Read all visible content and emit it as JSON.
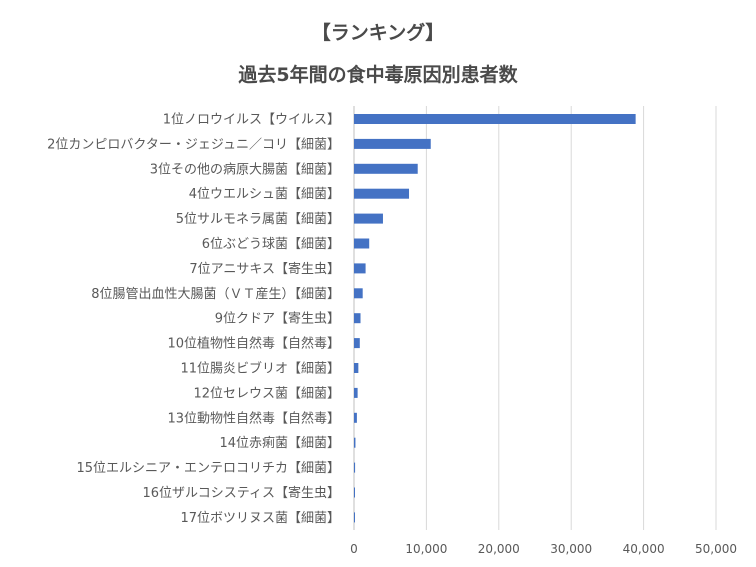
{
  "chart_data": {
    "type": "bar",
    "orientation": "horizontal",
    "title_line1": "【ランキング】",
    "title_line2": "過去5年間の食中毒原因別患者数",
    "categories": [
      "1位ノロウイルス【ウイルス】",
      "2位カンピロバクター・ジェジュニ／コリ【細菌】",
      "3位その他の病原大腸菌【細菌】",
      "4位ウエルシュ菌【細菌】",
      "5位サルモネラ属菌【細菌】",
      "6位ぶどう球菌【細菌】",
      "7位アニサキス【寄生虫】",
      "8位腸管出血性大腸菌（ＶＴ産生）【細菌】",
      "9位クドア【寄生虫】",
      "10位植物性自然毒【自然毒】",
      "11位腸炎ビブリオ【細菌】",
      "12位セレウス菌【細菌】",
      "13位動物性自然毒【自然毒】",
      "14位赤痢菌【細菌】",
      "15位エルシニア・エンテロコリチカ【細菌】",
      "16位ザルコシスティス【寄生虫】",
      "17位ボツリヌス菌【細菌】"
    ],
    "values": [
      38900,
      10600,
      8800,
      7600,
      4000,
      2100,
      1600,
      1200,
      900,
      800,
      600,
      500,
      400,
      200,
      150,
      100,
      10
    ],
    "xlim": [
      0,
      50000
    ],
    "xticks": [
      0,
      10000,
      20000,
      30000,
      40000,
      50000
    ],
    "xtick_labels": [
      "0",
      "10,000",
      "20,000",
      "30,000",
      "40,000",
      "50,000"
    ],
    "grid": "vertical",
    "bar_color": "#4472C4",
    "grid_color": "#d9d9d9"
  }
}
